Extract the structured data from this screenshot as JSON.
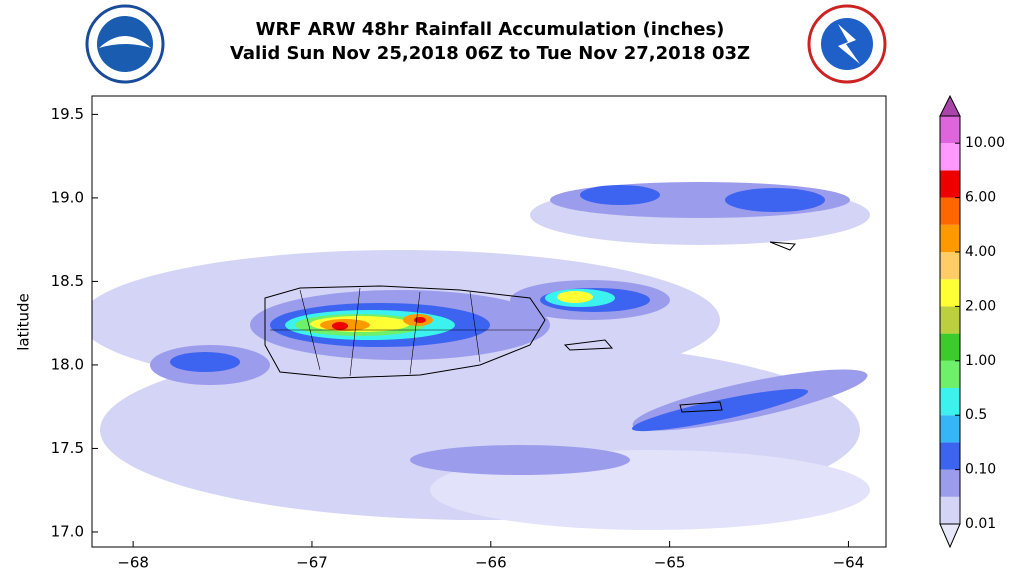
{
  "chart_data": {
    "type": "contour-map",
    "title": "WRF ARW 48hr Rainfall Accumulation (inches)",
    "subtitle": "Valid Sun Nov 25,2018 06Z to Tue Nov 27,2018 03Z",
    "y_label": "latitude",
    "xlim": [
      -68.23,
      -63.79
    ],
    "ylim": [
      16.91,
      19.61
    ],
    "xticks": [
      {
        "value": -68,
        "label": "−68"
      },
      {
        "value": -67,
        "label": "−67"
      },
      {
        "value": -66,
        "label": "−66"
      },
      {
        "value": -65,
        "label": "−65"
      },
      {
        "value": -64,
        "label": "−64"
      }
    ],
    "yticks": [
      {
        "value": 17,
        "label": "17.0"
      },
      17.5,
      {
        "value": 18,
        "label": "18.0"
      },
      18.5,
      {
        "value": 19,
        "label": "19.0"
      },
      19.5
    ],
    "colorbar": {
      "levels": [
        0.01,
        {
          "value": 0.1,
          "label": "0.10"
        },
        0.5,
        {
          "value": 1,
          "label": "1.00"
        },
        {
          "value": 2,
          "label": "2.00"
        },
        {
          "value": 4,
          "label": "4.00"
        },
        {
          "value": 6,
          "label": "6.00"
        },
        {
          "value": 10,
          "label": "10.00"
        }
      ],
      "colors": [
        "#d4d4f7",
        "#9c9cec",
        "#3c64f0",
        "#35b6f6",
        "#3cf2ee",
        "#6ef06a",
        "#3ccc2a",
        "#bccf3c",
        "#ffff33",
        "#ffcc66",
        "#ff9900",
        "#ff6600",
        "#ee0000",
        "#ff99ff",
        "#dd66dd"
      ],
      "under_color": "#e8e8fb",
      "over_color": "#aa44aa"
    }
  }
}
